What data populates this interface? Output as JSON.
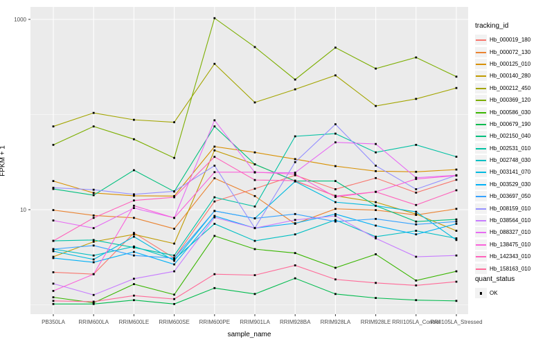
{
  "figure": {
    "y_axis": {
      "title": "FPKM + 1"
    },
    "x_axis": {
      "title": "sample_name"
    },
    "legend": {
      "title": "tracking_id"
    },
    "quant_legend": {
      "title": "quant_status",
      "item": "OK"
    },
    "colors": {
      "panel_bg": "#EBEBEB",
      "grid": "#FFFFFF",
      "tick_text": "#4D4D4D",
      "tick_mark": "#333333",
      "legend_key_bg": "#F2F2F2",
      "point": "#000000"
    }
  },
  "chart_data": {
    "type": "line",
    "x_type": "categorical",
    "y_scale": "log10",
    "title": "",
    "xlabel": "sample_name",
    "ylabel": "FPKM + 1",
    "legend_title": "tracking_id",
    "legend_position": "right",
    "point_shape": "filled-black-square",
    "grid": true,
    "ylim": [
      1,
      1350
    ],
    "y_breaks": [
      {
        "value": 10,
        "label": "10"
      },
      {
        "value": 1000,
        "label": "1000"
      }
    ],
    "y_minor_breaks": [
      1,
      100
    ],
    "categories": [
      "PB350LA",
      "RRIM600LA",
      "RRIM600LE",
      "RRIM600SE",
      "RRIM600PE",
      "RRIM901LA",
      "RRIM928BA",
      "RRIM928LA",
      "RRIM928LE",
      "RRII105LA_Control",
      "RRII105LA_Stressed"
    ],
    "series": [
      {
        "name": "Hb_000019_180",
        "color": "#F8766D",
        "values": [
          2.2,
          2.1,
          5.7,
          3.1,
          12.2,
          16.6,
          23,
          16.4,
          21.5,
          15.1,
          20.6
        ]
      },
      {
        "name": "Hb_000072_130",
        "color": "#EA8331",
        "values": [
          9.9,
          8.7,
          8.2,
          6.3,
          21.4,
          13.9,
          7.1,
          10.2,
          9.9,
          8.8,
          10.2
        ]
      },
      {
        "name": "Hb_000125_010",
        "color": "#D89000",
        "values": [
          20,
          15,
          14,
          13.9,
          46,
          40,
          34,
          28.7,
          25.4,
          25,
          26.4
        ]
      },
      {
        "name": "Hb_000140_280",
        "color": "#C09B00",
        "values": [
          3.2,
          4.6,
          5.5,
          4.4,
          42,
          30,
          20,
          14,
          12,
          9,
          6
        ]
      },
      {
        "name": "Hb_000212_450",
        "color": "#A3A500",
        "values": [
          75,
          104,
          88,
          83,
          341,
          134,
          184,
          258,
          123,
          146,
          190
        ]
      },
      {
        "name": "Hb_000369_120",
        "color": "#7CAE00",
        "values": [
          48,
          75,
          55,
          35,
          1030,
          512,
          233,
          505,
          304,
          398,
          250
        ]
      },
      {
        "name": "Hb_000586_030",
        "color": "#39B600",
        "values": [
          1.2,
          1.05,
          1.65,
          1.28,
          5.3,
          3.85,
          3.5,
          2.45,
          3.4,
          1.8,
          2.25
        ]
      },
      {
        "name": "Hb_000679_190",
        "color": "#00BB4E",
        "values": [
          1.02,
          1.02,
          1.12,
          1.02,
          1.5,
          1.3,
          1.9,
          1.3,
          1.18,
          1.12,
          1.1
        ]
      },
      {
        "name": "Hb_002150_040",
        "color": "#00BF7D",
        "values": [
          16.5,
          14.2,
          26,
          15.5,
          75,
          30,
          20,
          20,
          11,
          7.5,
          7.9
        ]
      },
      {
        "name": "Hb_002531_010",
        "color": "#00C1A3",
        "values": [
          4.7,
          4.8,
          4.0,
          3.3,
          13.5,
          10.8,
          59,
          63,
          40,
          48,
          36
        ]
      },
      {
        "name": "Hb_002748_030",
        "color": "#00BFC4",
        "values": [
          3.85,
          3.3,
          4.1,
          3.0,
          7.1,
          4.7,
          5.5,
          7.8,
          5.2,
          6.0,
          5.0
        ]
      },
      {
        "name": "Hb_003141_070",
        "color": "#00BAE0",
        "values": [
          3.66,
          3.0,
          5.2,
          2.9,
          9.7,
          8.1,
          19.8,
          12,
          11,
          9.5,
          4.8
        ]
      },
      {
        "name": "Hb_003529_030",
        "color": "#00B0F6",
        "values": [
          3.1,
          2.8,
          3.6,
          2.66,
          8.6,
          6.4,
          7.2,
          9.0,
          6.8,
          5.5,
          7.1
        ]
      },
      {
        "name": "Hb_003697_050",
        "color": "#35A2FF",
        "values": [
          3.85,
          4.2,
          3.3,
          3.1,
          9.7,
          8.1,
          9.0,
          7.5,
          8.0,
          7.0,
          7.5
        ]
      },
      {
        "name": "Hb_008159_010",
        "color": "#9590FF",
        "values": [
          17,
          16.2,
          14.5,
          15.6,
          29,
          6.4,
          31.6,
          79,
          29,
          16.4,
          23
        ]
      },
      {
        "name": "Hb_038564_010",
        "color": "#C77CFF",
        "values": [
          1.67,
          1.27,
          1.88,
          2.25,
          8.3,
          6.4,
          7.8,
          8.6,
          5.0,
          3.2,
          3.3
        ]
      },
      {
        "name": "Hb_088327_010",
        "color": "#E76BF3",
        "values": [
          7.7,
          6.4,
          10.4,
          8.2,
          87,
          24.6,
          24.5,
          51,
          49,
          21.7,
          23
        ]
      },
      {
        "name": "Hb_138475_010",
        "color": "#FA62DB",
        "values": [
          1.4,
          2.1,
          11,
          8.2,
          24.8,
          24.8,
          23.6,
          13.6,
          15.4,
          21,
          22.8
        ]
      },
      {
        "name": "Hb_142343_010",
        "color": "#FF62BC",
        "values": [
          4.7,
          8.2,
          12.5,
          13.5,
          35.9,
          20.5,
          20.2,
          13.9,
          15.4,
          11.2,
          16
        ]
      },
      {
        "name": "Hb_158163_010",
        "color": "#FF6A98",
        "values": [
          1.1,
          1.08,
          1.25,
          1.15,
          2.1,
          2.05,
          2.6,
          1.85,
          1.7,
          1.6,
          1.75
        ]
      }
    ],
    "quant_status": {
      "title": "quant_status",
      "levels": [
        "OK"
      ]
    }
  }
}
